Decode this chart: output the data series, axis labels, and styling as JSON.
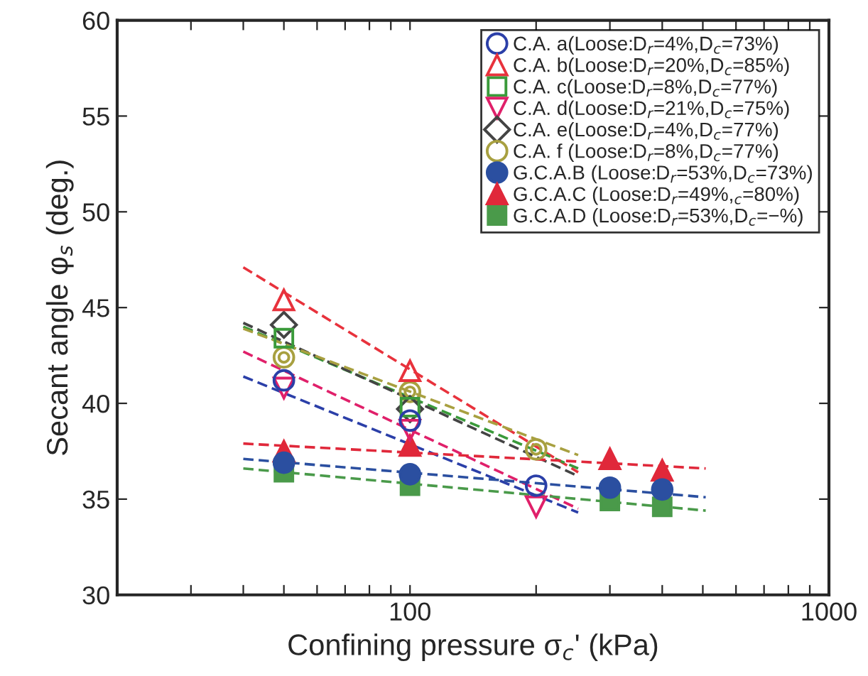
{
  "chart_data": {
    "type": "scatter",
    "xlabel": "Confining pressure σ$_{c}$' (kPa)",
    "ylabel": "Secant angle φ$_{s}$ (deg.)",
    "log": "x",
    "xlim": [
      20,
      1000
    ],
    "xticks": [
      {
        "value": 20,
        "label": null
      },
      {
        "value": 30,
        "label": null
      },
      {
        "value": 40,
        "label": null
      },
      {
        "value": 50,
        "label": null
      },
      {
        "value": 60,
        "label": null
      },
      {
        "value": 70,
        "label": null
      },
      {
        "value": 80,
        "label": null
      },
      {
        "value": 90,
        "label": null
      },
      100,
      {
        "value": 200,
        "label": null
      },
      {
        "value": 300,
        "label": null
      },
      {
        "value": 400,
        "label": null
      },
      {
        "value": 500,
        "label": null
      },
      {
        "value": 600,
        "label": null
      },
      {
        "value": 700,
        "label": null
      },
      {
        "value": 800,
        "label": null
      },
      {
        "value": 900,
        "label": null
      },
      1000
    ],
    "ylim": [
      30,
      60
    ],
    "yticks": [
      30,
      35,
      40,
      45,
      50,
      55,
      60
    ],
    "legend": "top right",
    "grid": false,
    "series": [
      {
        "name": "C.A. a(Loose:D$_{r}$=4%,D$_{c}$=73%)",
        "color": "#2b3fa8",
        "marker": "circle-open",
        "x": [
          50,
          100,
          200
        ],
        "values": [
          41.2,
          39.1,
          35.7
        ]
      },
      {
        "name": "C.A. b(Loose:D$_{r}$=20%,D$_{c}$=85%)",
        "color": "#e8323c",
        "marker": "triangle-open",
        "x": [
          50,
          100
        ],
        "values": [
          45.4,
          41.7
        ]
      },
      {
        "name": "C.A. c(Loose:D$_{r}$=8%,D$_{c}$=77%)",
        "color": "#3a9a3a",
        "marker": "square-open",
        "x": [
          50,
          100
        ],
        "values": [
          43.4,
          39.8
        ]
      },
      {
        "name": "C.A. d(Loose:D$_{r}$=21%,D$_{c}$=75%)",
        "color": "#e0206a",
        "marker": "triangle_down-open",
        "x": [
          50,
          100,
          200
        ],
        "values": [
          40.8,
          38.6,
          34.6
        ]
      },
      {
        "name": "C.A. e(Loose:D$_{r}$=4%,D$_{c}$=77%)",
        "color": "#444444",
        "marker": "diamond-open",
        "x": [
          50,
          100
        ],
        "values": [
          44.1,
          39.7
        ]
      },
      {
        "name": "C.A. f (Loose:D$_{r}$=8%,D$_{c}$=77%)",
        "color": "#a8a040",
        "marker": "doublecircle-open",
        "x": [
          50,
          100,
          200
        ],
        "values": [
          42.4,
          40.6,
          37.6
        ]
      },
      {
        "name": "G.C.A.B (Loose:D$_{r}$=53%,D$_{c}$=73%)",
        "color": "#2b4fa0",
        "marker": "circle",
        "x": [
          50,
          100,
          300,
          400
        ],
        "values": [
          36.9,
          36.3,
          35.6,
          35.5
        ]
      },
      {
        "name": "G.C.A.C (Loose:D$_{r}$=49%,$_{c}$=80%)",
        "color": "#e0283a",
        "marker": "triangle",
        "x": [
          50,
          100,
          300,
          400
        ],
        "values": [
          37.5,
          37.8,
          37.1,
          36.5
        ]
      },
      {
        "name": "G.C.A.D (Loose:D$_{r}$=53%,D$_{c}$=−%)",
        "color": "#4a9a4a",
        "marker": "square",
        "x": [
          50,
          100,
          300,
          400
        ],
        "values": [
          36.4,
          35.7,
          34.9,
          34.6
        ]
      },
      {
        "type": "line",
        "color": "#2b3fa8",
        "line_style": "dashed",
        "marker": "none",
        "x": [
          40,
          252
        ],
        "values": [
          41.4,
          34.3
        ]
      },
      {
        "type": "line",
        "color": "#e8323c",
        "line_style": "dashed",
        "marker": "none",
        "x": [
          40,
          252
        ],
        "values": [
          47.1,
          36.4
        ]
      },
      {
        "type": "line",
        "color": "#3a9a3a",
        "line_style": "dashed",
        "marker": "none",
        "x": [
          40,
          252
        ],
        "values": [
          44.0,
          36.6
        ]
      },
      {
        "type": "line",
        "color": "#e0206a",
        "line_style": "dashed",
        "marker": "none",
        "x": [
          40,
          252
        ],
        "values": [
          42.7,
          34.5
        ]
      },
      {
        "type": "line",
        "color": "#444444",
        "line_style": "dashed",
        "marker": "none",
        "x": [
          40,
          252
        ],
        "values": [
          44.2,
          36.2
        ]
      },
      {
        "type": "line",
        "color": "#a8a040",
        "line_style": "dashed",
        "marker": "none",
        "x": [
          40,
          252
        ],
        "values": [
          43.9,
          37.3
        ]
      },
      {
        "type": "line",
        "color": "#2b4fa0",
        "line_style": "dashed",
        "marker": "none",
        "x": [
          40,
          508
        ],
        "values": [
          37.1,
          35.1
        ]
      },
      {
        "type": "line",
        "color": "#e0283a",
        "line_style": "dashed",
        "marker": "none",
        "x": [
          40,
          508
        ],
        "values": [
          37.9,
          36.6
        ]
      },
      {
        "type": "line",
        "color": "#4a9a4a",
        "line_style": "dashed",
        "marker": "none",
        "x": [
          40,
          508
        ],
        "values": [
          36.6,
          34.4
        ]
      }
    ]
  }
}
